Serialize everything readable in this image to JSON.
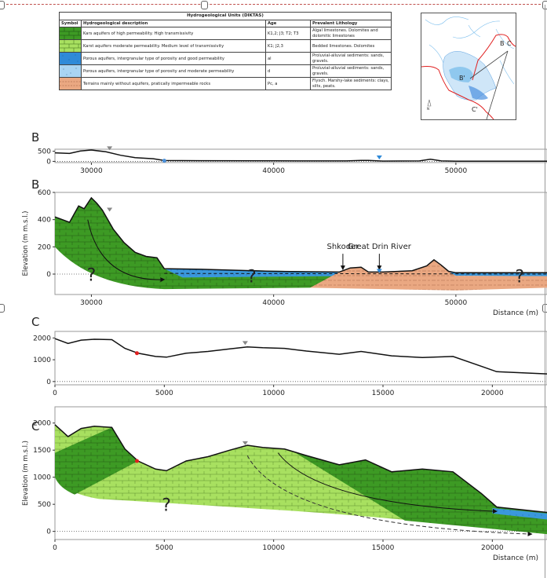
{
  "legend": {
    "title": "Hydrogeological Units (DIKTAS)",
    "headers": [
      "Symbol",
      "Hydrogeological description",
      "Age",
      "Prevalent Lithology"
    ],
    "rows": [
      {
        "symbol": "dark-green-limestone",
        "color": "#3d9a24",
        "description": "Kars aquifers of high permeability. High transmissivity",
        "age": "K1,2; J3; T2; T3",
        "lithology": "Algal limestones. Dolomites and dolomitic limestones"
      },
      {
        "symbol": "light-green-limestone",
        "color": "#a8e060",
        "description": "Karst aquifers moderate permeability. Medium level of transmissivity",
        "age": "K1; J2,3",
        "lithology": "Bedded limestones. Dolomites"
      },
      {
        "symbol": "blue-porous",
        "color": "#2f8ad8",
        "description": "Porous aquifers, intergranular type of porosity and good permeability",
        "age": "al",
        "lithology": "Proluvial-alluvial sediments: sands, gravels."
      },
      {
        "symbol": "light-blue-porous",
        "color": "#a9d4f2",
        "description": "Porous aquifers, intergranular type of porosity and moderate permeability",
        "age": "d",
        "lithology": "Proluvial-alluvial sediments: sands, gravels."
      },
      {
        "symbol": "salmon-flysch",
        "color": "#eaa882",
        "description": "Terrains mainly without aquifers, pratically impermeable rocks",
        "age": "Pc, a",
        "lithology": "Flysch. Marshy-lake sediments: clays, silts, peats."
      }
    ]
  },
  "map": {
    "labels": {
      "b": "B",
      "c": "C",
      "b_prime": "B'",
      "c_prime": "C'"
    },
    "north_label": "N",
    "colors": {
      "border": "#e02020",
      "lake": "#8fc8ee",
      "rivers": "#5aa8e8",
      "section_line": "#444444"
    }
  },
  "chart_data": [
    {
      "id": "B-overview",
      "type": "line",
      "panel_label": "B",
      "xlim": [
        28000,
        55000
      ],
      "ylim": [
        -60,
        600
      ],
      "xticks": [
        30000,
        40000,
        50000
      ],
      "yticks": [
        0,
        500
      ],
      "x": [
        28000,
        28800,
        29400,
        30000,
        30800,
        31600,
        32400,
        33400,
        34000,
        36000,
        40000,
        44000,
        44800,
        45200,
        46000,
        48000,
        48600,
        49200,
        50000,
        55000
      ],
      "y": [
        420,
        390,
        510,
        560,
        470,
        300,
        180,
        130,
        40,
        35,
        25,
        20,
        50,
        50,
        15,
        20,
        105,
        20,
        10,
        10
      ],
      "markers": [
        {
          "x": 31000,
          "y": 470,
          "kind": "water-table",
          "color": "#888888"
        },
        {
          "x": 34000,
          "y": 30,
          "kind": "point",
          "color": "#4a90d9"
        },
        {
          "x": 45800,
          "y": 20,
          "kind": "river",
          "color": "#2f8ad8"
        }
      ]
    },
    {
      "id": "B-section",
      "type": "area",
      "panel_label": "B",
      "xlabel": "Distance (m)",
      "ylabel": "Elevation (m m.s.l.)",
      "xlim": [
        28000,
        55000
      ],
      "ylim": [
        -150,
        600
      ],
      "xticks": [
        30000,
        40000,
        50000
      ],
      "yticks": [
        0,
        200,
        400,
        600
      ],
      "surface": {
        "x": [
          28000,
          28800,
          29300,
          29600,
          30000,
          30300,
          30600,
          31200,
          31800,
          32400,
          33000,
          33600,
          34000,
          36000,
          40000,
          43600,
          44200,
          44800,
          45200,
          46000,
          47600,
          48400,
          48800,
          49200,
          49600,
          50000,
          55000
        ],
        "y": [
          420,
          380,
          500,
          480,
          560,
          520,
          470,
          330,
          230,
          160,
          130,
          120,
          40,
          35,
          20,
          15,
          45,
          50,
          15,
          15,
          25,
          60,
          105,
          65,
          20,
          10,
          10
        ]
      },
      "annotations": [
        {
          "text": "Shkoder",
          "x": 43800,
          "y": 80
        },
        {
          "text": "Great Drin River",
          "x": 45800,
          "y": 80
        }
      ],
      "unknown_marks": [
        {
          "x": 30000,
          "y": -50
        },
        {
          "x": 38800,
          "y": -60
        },
        {
          "x": 53500,
          "y": -60
        }
      ],
      "units": [
        "dark-green-limestone",
        "blue-porous",
        "salmon-flysch"
      ]
    },
    {
      "id": "C-overview",
      "type": "line",
      "panel_label": "C",
      "xlim": [
        0,
        22500
      ],
      "ylim": [
        -150,
        2300
      ],
      "xticks": [
        0,
        5000,
        10000,
        15000,
        20000
      ],
      "yticks": [
        0,
        1000,
        2000
      ],
      "x": [
        0,
        600,
        1200,
        1800,
        2600,
        3200,
        3800,
        4600,
        5100,
        6000,
        7000,
        8000,
        8800,
        9500,
        10500,
        11500,
        13000,
        14000,
        15400,
        16800,
        18200,
        19500,
        20200,
        22500
      ],
      "y": [
        1970,
        1750,
        1900,
        1940,
        1920,
        1520,
        1300,
        1150,
        1120,
        1300,
        1380,
        1500,
        1590,
        1550,
        1520,
        1400,
        1250,
        1380,
        1180,
        1100,
        1150,
        700,
        450,
        350
      ],
      "markers": [
        {
          "x": 3750,
          "y": 1300,
          "kind": "point",
          "color": "#e02020"
        },
        {
          "x": 8700,
          "y": 1600,
          "kind": "water-table",
          "color": "#888888"
        }
      ]
    },
    {
      "id": "C-section",
      "type": "area",
      "panel_label": "C",
      "xlabel": "Distance (m)",
      "ylabel": "Elevation (m m.s.l.)",
      "xlim": [
        0,
        22500
      ],
      "ylim": [
        -150,
        2300
      ],
      "xticks": [
        0,
        5000,
        10000,
        15000,
        20000
      ],
      "yticks": [
        0,
        500,
        1000,
        1500,
        2000
      ],
      "surface": {
        "x": [
          0,
          600,
          1200,
          1800,
          2600,
          3200,
          3800,
          4600,
          5100,
          6000,
          7000,
          8000,
          8800,
          9500,
          10500,
          11500,
          13000,
          14200,
          15400,
          16800,
          18200,
          19500,
          20200,
          22500
        ],
        "y": [
          1970,
          1750,
          1900,
          1940,
          1920,
          1520,
          1300,
          1150,
          1120,
          1300,
          1380,
          1500,
          1590,
          1550,
          1520,
          1400,
          1230,
          1320,
          1100,
          1150,
          1100,
          700,
          450,
          350
        ]
      },
      "unknown_marks": [
        {
          "x": 5100,
          "y": 380
        }
      ],
      "units": [
        "dark-green-limestone",
        "light-green-limestone",
        "blue-porous"
      ]
    }
  ]
}
